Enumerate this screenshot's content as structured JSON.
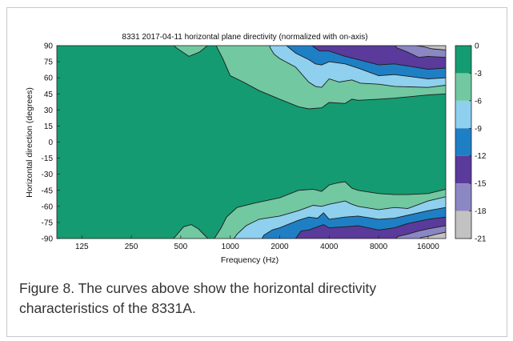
{
  "chart_data": {
    "type": "heatmap",
    "title": "8331 2017-04-11 horizontal plane directivity (normalized with on-axis)",
    "xlabel": "Frequency (Hz)",
    "ylabel": "Horizontal direction (degrees)",
    "x_scale": "log",
    "xlim": [
      88,
      20500
    ],
    "ylim": [
      -90,
      90
    ],
    "x_ticks": [
      125,
      250,
      500,
      1000,
      2000,
      4000,
      8000,
      16000
    ],
    "x_tick_labels": [
      "125",
      "250",
      "500",
      "1000",
      "2000",
      "4000",
      "8000",
      "16000"
    ],
    "y_ticks": [
      90,
      75,
      60,
      45,
      30,
      15,
      0,
      -15,
      -30,
      -45,
      -60,
      -75,
      -90
    ],
    "y_tick_labels": [
      "90",
      "75",
      "60",
      "45",
      "30",
      "15",
      "0",
      "-15",
      "-30",
      "-45",
      "-60",
      "-75",
      "-90"
    ],
    "colorbar": {
      "tick_labels": [
        "0",
        "-3",
        "-6",
        "-9",
        "-12",
        "-15",
        "-18",
        "-21"
      ],
      "band_colors": [
        "#159b71",
        "#72c8a0",
        "#8ed0ee",
        "#1f7fc5",
        "#5a3a9a",
        "#8b87c3",
        "#c2c2c2"
      ]
    },
    "contour_levels_db": [
      -3,
      -6,
      -9,
      -12,
      -15,
      -18
    ],
    "contours_upper": [
      {
        "level": -3,
        "angle_at_freq": [
          [
            88,
            95
          ],
          [
            420,
            95
          ],
          [
            470,
            88
          ],
          [
            560,
            80
          ],
          [
            650,
            84
          ],
          [
            740,
            91
          ],
          [
            780,
            92
          ],
          [
            820,
            90
          ],
          [
            900,
            78
          ],
          [
            1000,
            62
          ],
          [
            1200,
            56
          ],
          [
            1500,
            48
          ],
          [
            2000,
            40
          ],
          [
            2600,
            33
          ],
          [
            3000,
            31
          ],
          [
            3600,
            32
          ],
          [
            4000,
            37
          ],
          [
            5000,
            36
          ],
          [
            5500,
            40
          ],
          [
            6000,
            39
          ],
          [
            8000,
            40
          ],
          [
            10000,
            41
          ],
          [
            16000,
            44
          ],
          [
            20500,
            45
          ]
        ]
      },
      {
        "level": -6,
        "angle_at_freq": [
          [
            1700,
            95
          ],
          [
            1750,
            88
          ],
          [
            1850,
            82
          ],
          [
            2000,
            78
          ],
          [
            2500,
            70
          ],
          [
            3000,
            56
          ],
          [
            3300,
            52
          ],
          [
            3600,
            51
          ],
          [
            4000,
            59
          ],
          [
            4600,
            56
          ],
          [
            5500,
            58
          ],
          [
            6200,
            55
          ],
          [
            8000,
            54
          ],
          [
            10000,
            52
          ],
          [
            16000,
            51
          ],
          [
            20500,
            53
          ]
        ]
      },
      {
        "level": -9,
        "angle_at_freq": [
          [
            2150,
            95
          ],
          [
            2200,
            90
          ],
          [
            2500,
            83
          ],
          [
            3000,
            77
          ],
          [
            3300,
            73
          ],
          [
            3600,
            72
          ],
          [
            4000,
            75
          ],
          [
            5000,
            73
          ],
          [
            6000,
            69
          ],
          [
            8000,
            62
          ],
          [
            10000,
            63
          ],
          [
            16000,
            59
          ],
          [
            20500,
            60
          ]
        ]
      },
      {
        "level": -12,
        "angle_at_freq": [
          [
            3000,
            95
          ],
          [
            3200,
            89
          ],
          [
            3500,
            85
          ],
          [
            4000,
            85
          ],
          [
            5000,
            80
          ],
          [
            6000,
            77
          ],
          [
            8000,
            72
          ],
          [
            10000,
            73
          ],
          [
            16000,
            68
          ],
          [
            20500,
            69
          ]
        ]
      },
      {
        "level": -15,
        "angle_at_freq": [
          [
            9800,
            95
          ],
          [
            10300,
            88
          ],
          [
            12000,
            84
          ],
          [
            14000,
            79
          ],
          [
            16000,
            80
          ],
          [
            20500,
            79
          ]
        ]
      },
      {
        "level": -18,
        "angle_at_freq": [
          [
            13000,
            95
          ],
          [
            13500,
            90
          ],
          [
            15000,
            89
          ],
          [
            17000,
            87
          ],
          [
            20500,
            86
          ]
        ]
      }
    ],
    "contours_lower": [
      {
        "level": -3,
        "angle_at_freq": [
          [
            88,
            -95
          ],
          [
            420,
            -95
          ],
          [
            470,
            -87
          ],
          [
            520,
            -79
          ],
          [
            580,
            -77
          ],
          [
            640,
            -81
          ],
          [
            720,
            -89
          ],
          [
            760,
            -92
          ],
          [
            800,
            -90
          ],
          [
            880,
            -80
          ],
          [
            950,
            -70
          ],
          [
            1100,
            -61
          ],
          [
            1400,
            -57
          ],
          [
            2000,
            -52
          ],
          [
            2600,
            -45
          ],
          [
            3200,
            -44
          ],
          [
            3600,
            -46
          ],
          [
            4000,
            -40
          ],
          [
            4500,
            -38
          ],
          [
            5000,
            -37
          ],
          [
            5500,
            -43
          ],
          [
            6000,
            -45
          ],
          [
            8000,
            -48
          ],
          [
            10000,
            -49
          ],
          [
            12000,
            -49
          ],
          [
            16000,
            -48
          ],
          [
            20500,
            -44
          ]
        ]
      },
      {
        "level": -6,
        "angle_at_freq": [
          [
            1000,
            -95
          ],
          [
            1100,
            -86
          ],
          [
            1250,
            -78
          ],
          [
            1500,
            -72
          ],
          [
            2000,
            -69
          ],
          [
            2600,
            -64
          ],
          [
            3200,
            -59
          ],
          [
            3600,
            -60
          ],
          [
            4000,
            -58
          ],
          [
            5000,
            -55
          ],
          [
            5500,
            -58
          ],
          [
            6000,
            -60
          ],
          [
            8000,
            -63
          ],
          [
            10000,
            -61
          ],
          [
            12000,
            -62
          ],
          [
            16000,
            -55
          ],
          [
            20500,
            -51
          ]
        ]
      },
      {
        "level": -9,
        "angle_at_freq": [
          [
            1500,
            -95
          ],
          [
            1600,
            -87
          ],
          [
            1800,
            -82
          ],
          [
            2000,
            -80
          ],
          [
            2600,
            -73
          ],
          [
            3000,
            -70
          ],
          [
            3400,
            -71
          ],
          [
            3700,
            -66
          ],
          [
            4000,
            -72
          ],
          [
            5000,
            -70
          ],
          [
            6000,
            -69
          ],
          [
            8000,
            -72
          ],
          [
            10000,
            -71
          ],
          [
            16000,
            -64
          ],
          [
            20500,
            -61
          ]
        ]
      },
      {
        "level": -12,
        "angle_at_freq": [
          [
            2400,
            -95
          ],
          [
            2500,
            -90
          ],
          [
            2700,
            -83
          ],
          [
            3000,
            -82
          ],
          [
            3700,
            -77
          ],
          [
            4000,
            -80
          ],
          [
            5000,
            -79
          ],
          [
            6000,
            -78
          ],
          [
            8000,
            -82
          ],
          [
            10000,
            -80
          ],
          [
            12000,
            -76
          ],
          [
            16000,
            -72
          ],
          [
            20500,
            -70
          ]
        ]
      },
      {
        "level": -15,
        "angle_at_freq": [
          [
            9500,
            -95
          ],
          [
            10500,
            -88
          ],
          [
            12000,
            -86
          ],
          [
            14000,
            -83
          ],
          [
            16000,
            -81
          ],
          [
            20500,
            -78
          ]
        ]
      },
      {
        "level": -18,
        "angle_at_freq": [
          [
            13500,
            -95
          ],
          [
            14500,
            -89
          ],
          [
            16000,
            -88
          ],
          [
            18000,
            -86
          ],
          [
            20500,
            -84
          ]
        ]
      }
    ]
  },
  "caption": "Figure 8. The curves above show the horizontal directivity characteristics of the 8331A."
}
